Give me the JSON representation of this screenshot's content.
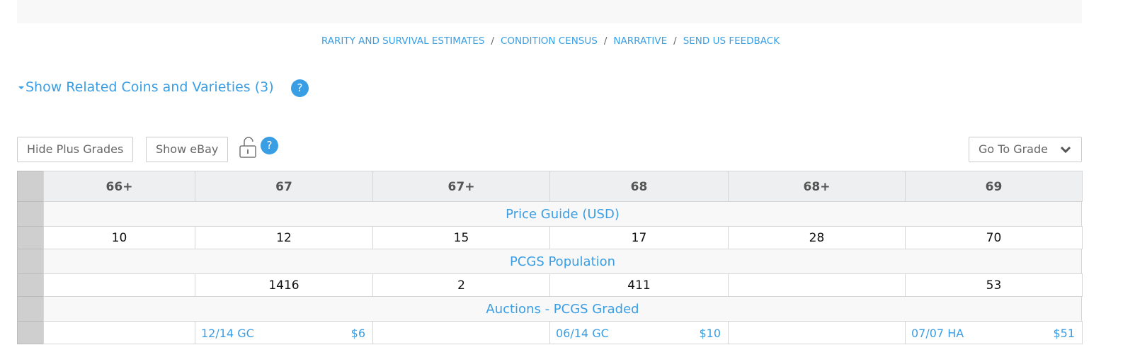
{
  "nav": {
    "links": [
      "RARITY AND SURVIVAL ESTIMATES",
      "CONDITION CENSUS",
      "NARRATIVE",
      "SEND US FEEDBACK"
    ],
    "separator": "/"
  },
  "related": {
    "label": "Show Related Coins and Varieties (3)",
    "help_icon": "?"
  },
  "toolbar": {
    "buttons": [
      "Hide Plus Grades",
      "Show eBay"
    ],
    "help_icon": "?",
    "go_to_grade": "Go To Grade"
  },
  "table": {
    "headers": [
      "66+",
      "67",
      "67+",
      "68",
      "68+",
      "69"
    ],
    "sections": [
      {
        "title": "Price Guide (USD)",
        "cells": [
          "10",
          "12",
          "15",
          "17",
          "28",
          "70"
        ]
      },
      {
        "title": "PCGS Population",
        "cells": [
          null,
          "1416",
          "2",
          "411",
          null,
          "53"
        ]
      },
      {
        "title": "Auctions - PCGS Graded",
        "cells": [
          null,
          {
            "date": "12/14 GC",
            "price": "$6"
          },
          null,
          {
            "date": "06/14 GC",
            "price": "$10"
          },
          null,
          {
            "date": "07/07 HA",
            "price": "$51"
          }
        ]
      }
    ]
  }
}
